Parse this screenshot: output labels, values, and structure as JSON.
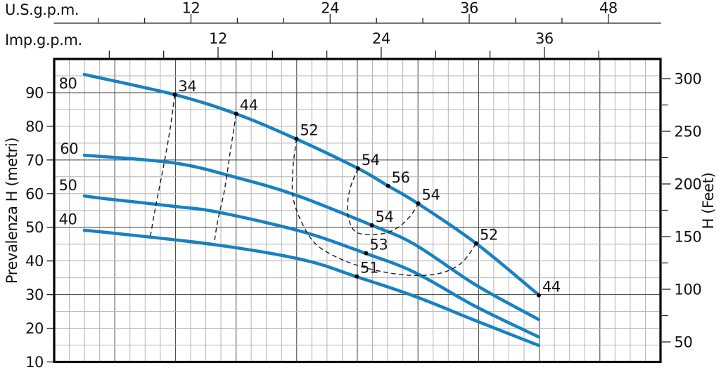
{
  "chart_data": {
    "type": "line",
    "description": "Pump performance curves: head vs flow with iso-efficiency lines",
    "axes": {
      "us_gpm": {
        "label": "U.S.g.p.m.",
        "ticks": [
          4,
          8,
          12,
          16,
          20,
          24,
          28,
          32,
          36,
          40,
          44,
          48
        ],
        "labeled": [
          12,
          24,
          36,
          48
        ]
      },
      "imp_gpm": {
        "label": "Imp.g.p.m.",
        "ticks": [
          4,
          8,
          12,
          16,
          20,
          24,
          28,
          32,
          36,
          40
        ],
        "labeled": [
          12,
          24,
          36
        ]
      },
      "left": {
        "label": "Prevalenza H (metri)",
        "ticks": [
          90,
          80,
          70,
          60,
          50,
          40,
          30,
          20,
          10
        ],
        "range": [
          10,
          100
        ]
      },
      "right": {
        "label": "H (Feet)",
        "labeled_ticks": [
          300,
          250,
          200,
          150,
          100,
          50
        ],
        "minor_ticks": [
          275,
          225,
          175,
          125,
          75
        ]
      }
    },
    "grid": {
      "on": true,
      "minor_step_m": 5,
      "major_step_m": 20
    },
    "series": [
      {
        "name": "80",
        "label_at": [
          0.6,
          91.2
        ],
        "points": [
          [
            2.8,
            95.4
          ],
          [
            10.6,
            89.4
          ],
          [
            15.9,
            83.7
          ],
          [
            21.1,
            76.2
          ],
          [
            26.4,
            67.5
          ],
          [
            29.0,
            62.3
          ],
          [
            31.6,
            57.0
          ],
          [
            36.6,
            45.2
          ],
          [
            42.0,
            29.9
          ]
        ]
      },
      {
        "name": "60",
        "label_at": [
          0.7,
          71.8
        ],
        "points": [
          [
            2.8,
            71.4
          ],
          [
            10.6,
            69.1
          ],
          [
            15.9,
            64.8
          ],
          [
            21.1,
            59.5
          ],
          [
            27.6,
            50.6
          ],
          [
            31.3,
            44.9
          ],
          [
            36.6,
            32.8
          ],
          [
            42.0,
            22.6
          ]
        ]
      },
      {
        "name": "50",
        "label_at": [
          0.6,
          61.0
        ],
        "points": [
          [
            2.8,
            59.3
          ],
          [
            4.6,
            58.5
          ],
          [
            10.6,
            56.2
          ],
          [
            14.3,
            54.5
          ],
          [
            21.6,
            48.7
          ],
          [
            27.1,
            42.2
          ],
          [
            31.3,
            36.6
          ],
          [
            36.6,
            26.4
          ],
          [
            42.0,
            17.4
          ]
        ]
      },
      {
        "name": "40",
        "label_at": [
          0.6,
          50.9
        ],
        "points": [
          [
            2.8,
            49.1
          ],
          [
            4.6,
            48.5
          ],
          [
            13.9,
            44.9
          ],
          [
            21.6,
            40.4
          ],
          [
            26.3,
            35.3
          ],
          [
            31.3,
            29.5
          ],
          [
            36.6,
            22.2
          ],
          [
            42.0,
            14.9
          ]
        ]
      }
    ],
    "efficiency_points": [
      {
        "value": "34",
        "at": [
          10.6,
          89.4
        ]
      },
      {
        "value": "44",
        "at": [
          15.9,
          83.7
        ]
      },
      {
        "value": "52",
        "at": [
          21.1,
          76.3
        ]
      },
      {
        "value": "54",
        "at": [
          26.4,
          67.5
        ]
      },
      {
        "value": "56",
        "at": [
          29.0,
          62.3
        ]
      },
      {
        "value": "54",
        "at": [
          31.6,
          57.1
        ]
      },
      {
        "value": "54",
        "at": [
          27.6,
          50.6
        ]
      },
      {
        "value": "53",
        "at": [
          27.1,
          42.3
        ]
      },
      {
        "value": "51",
        "at": [
          26.3,
          35.4
        ]
      },
      {
        "value": "52",
        "at": [
          36.6,
          45.2
        ]
      },
      {
        "value": "44",
        "at": [
          42.0,
          29.8
        ]
      }
    ],
    "iso_efficiency_lines": [
      {
        "points": [
          [
            10.6,
            89.4
          ],
          [
            10.2,
            79.2
          ],
          [
            9.6,
            67.5
          ],
          [
            9.0,
            57.0
          ],
          [
            8.5,
            47.4
          ]
        ]
      },
      {
        "points": [
          [
            15.9,
            83.7
          ],
          [
            15.4,
            72.7
          ],
          [
            14.9,
            61.2
          ],
          [
            14.3,
            51.8
          ],
          [
            14.0,
            45.2
          ]
        ]
      },
      {
        "points": [
          [
            21.1,
            76.3
          ],
          [
            20.8,
            67.5
          ],
          [
            20.8,
            59.1
          ],
          [
            21.5,
            51.8
          ],
          [
            22.8,
            44.9
          ],
          [
            25.1,
            40.3
          ],
          [
            27.7,
            37.4
          ],
          [
            30.6,
            35.8
          ],
          [
            33.3,
            36.2
          ],
          [
            35.3,
            39.3
          ],
          [
            36.6,
            45.2
          ]
        ]
      },
      {
        "points": [
          [
            26.4,
            67.5
          ],
          [
            25.7,
            61.2
          ],
          [
            25.5,
            55.0
          ],
          [
            25.8,
            50.5
          ],
          [
            26.4,
            48.3
          ],
          [
            27.5,
            47.9
          ],
          [
            28.8,
            48.3
          ],
          [
            30.0,
            50.3
          ],
          [
            31.0,
            53.7
          ],
          [
            31.6,
            57.1
          ]
        ]
      }
    ]
  },
  "colors": {
    "curve_blue": "#1781c2",
    "grid_minor": "#b3b3b3",
    "grid_major": "#3d3d3d",
    "dashed_line": "#1a1a1a",
    "dot": "#000000",
    "border": "#000000",
    "text": "#111111",
    "background": "#ffffff"
  }
}
